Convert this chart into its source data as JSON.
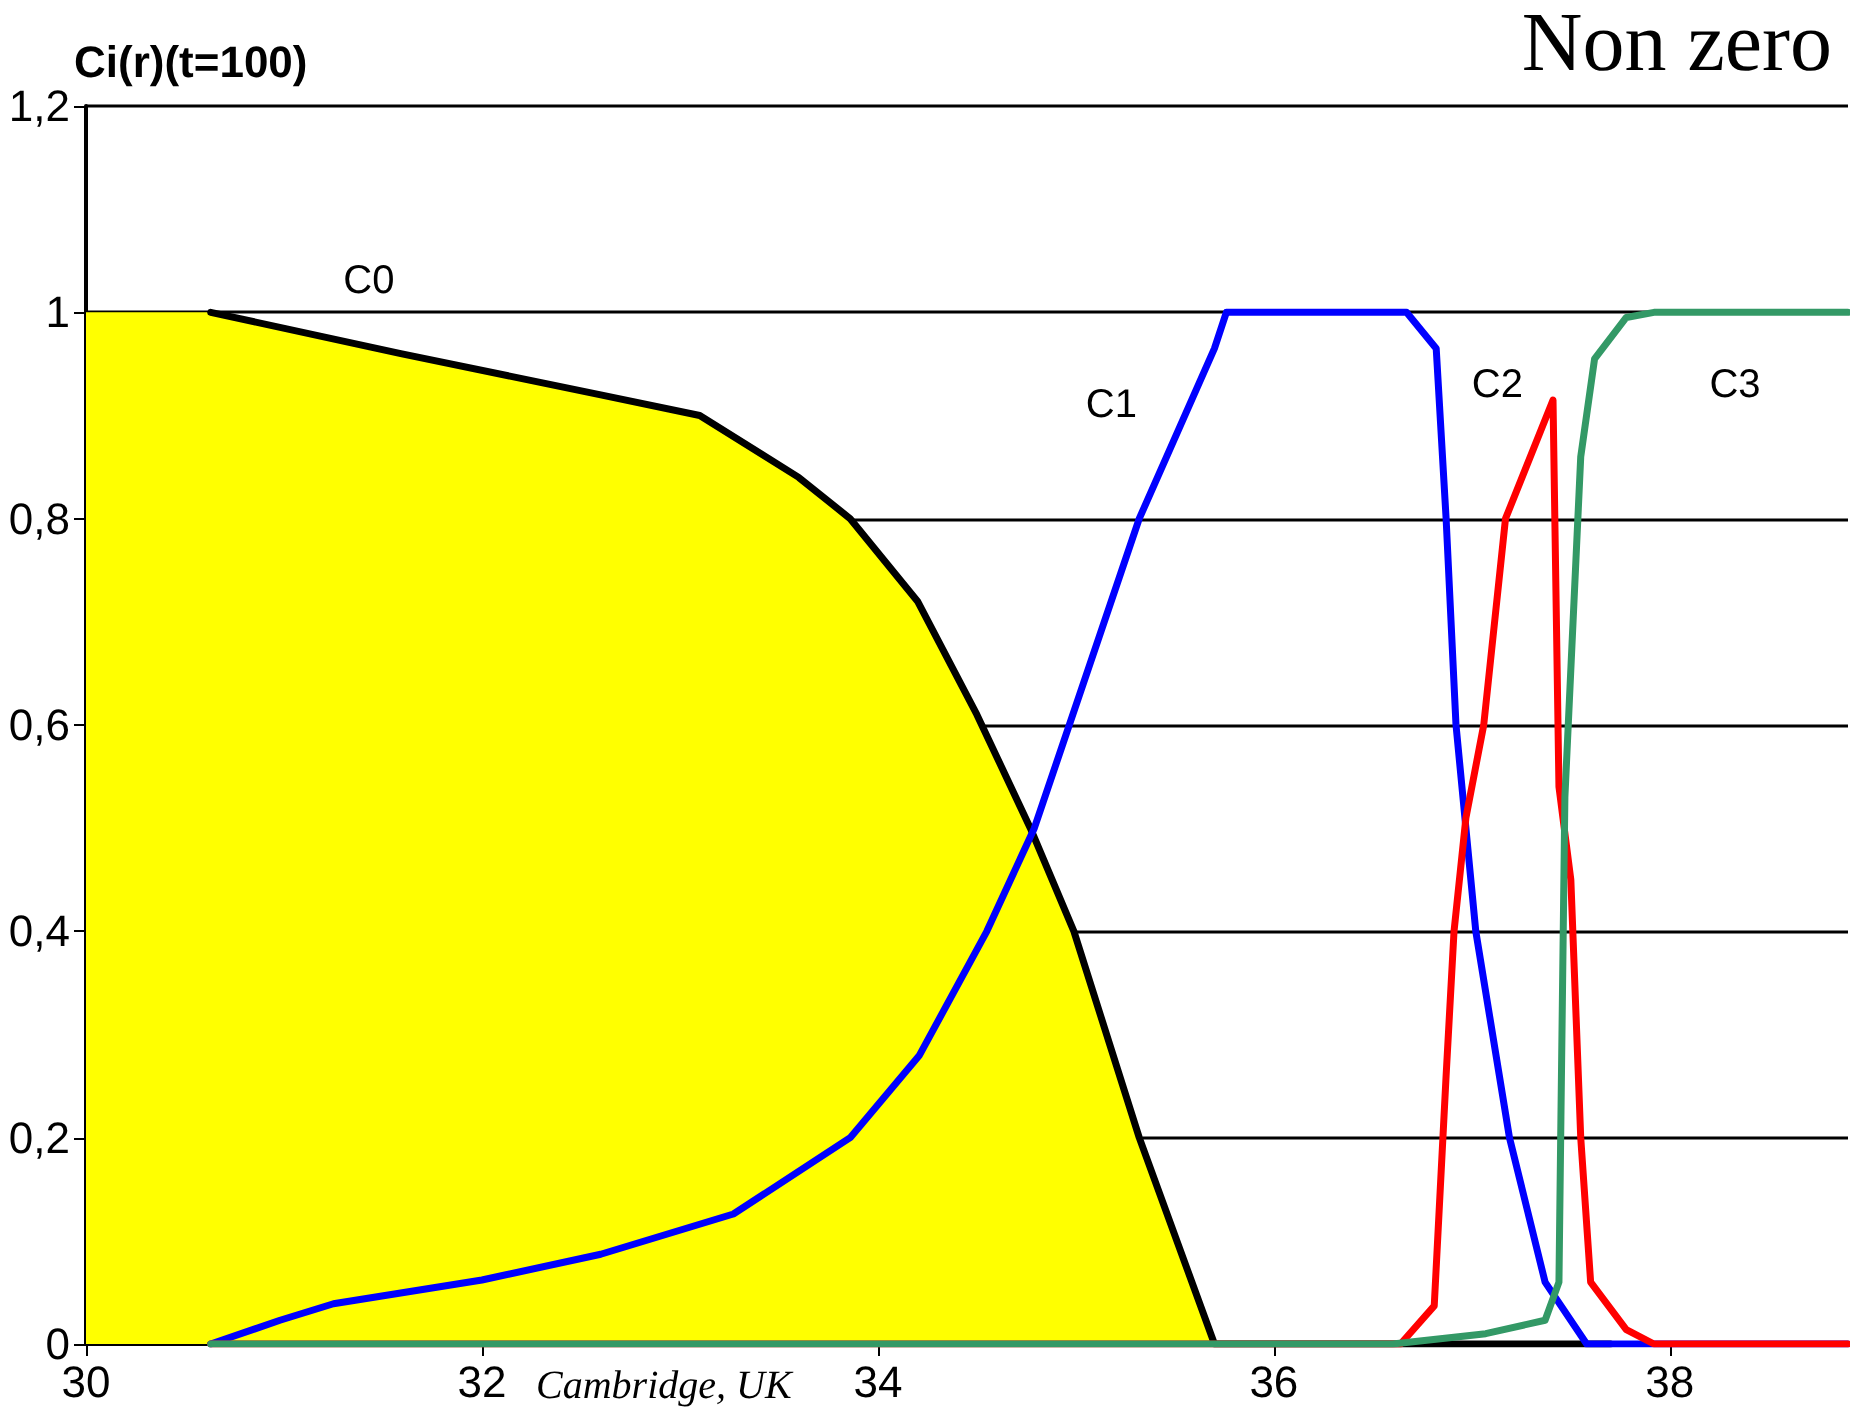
{
  "chart_data": {
    "type": "line",
    "title": "Non zero",
    "ylabel": "Ci(r)(t=100)",
    "annotations": [
      "Cambridge, UK"
    ],
    "xlim": [
      30,
      38.9
    ],
    "xticks": [
      30,
      32,
      34,
      36,
      38
    ],
    "ylim": [
      0,
      1.2
    ],
    "yticks": [
      0,
      {
        "value": 0.2,
        "label": "0,2"
      },
      {
        "value": 0.4,
        "label": "0,4"
      },
      {
        "value": 0.6,
        "label": "0,6"
      },
      {
        "value": 0.8,
        "label": "0,8"
      },
      1,
      {
        "value": 1.2,
        "label": "1,2"
      }
    ],
    "grid": "y",
    "marker": "none",
    "line_style": "solid",
    "series": [
      {
        "type": "area",
        "color": "#ffff00",
        "x": [
          30,
          30.63,
          31.59,
          32.6,
          33.1,
          33.6,
          33.86,
          34.2,
          34.5,
          34.77,
          34.99,
          35.32,
          35.7
        ],
        "values": [
          1,
          1,
          0.96,
          0.92,
          0.9,
          0.84,
          0.8,
          0.72,
          0.61,
          0.5,
          0.4,
          0.2,
          0
        ]
      },
      {
        "name": "C0",
        "color": "#000000",
        "x": [
          30.63,
          31.59,
          32.6,
          33.1,
          33.6,
          33.86,
          34.2,
          34.5,
          34.77,
          34.99,
          35.32,
          35.7,
          37.7
        ],
        "values": [
          1,
          0.96,
          0.92,
          0.9,
          0.84,
          0.8,
          0.72,
          0.61,
          0.5,
          0.4,
          0.2,
          0,
          0
        ]
      },
      {
        "name": "C1",
        "color": "#0000ff",
        "x": [
          30.63,
          30.98,
          31.25,
          32.0,
          32.6,
          33.27,
          33.86,
          34.21,
          34.55,
          34.79,
          35.32,
          35.7,
          35.76,
          36.67,
          36.82,
          36.87,
          36.92,
          37.02,
          37.19,
          37.37,
          37.58,
          38.9
        ],
        "values": [
          0,
          0.023,
          0.039,
          0.062,
          0.087,
          0.126,
          0.2,
          0.28,
          0.4,
          0.5,
          0.8,
          0.965,
          1,
          1,
          0.965,
          0.8,
          0.6,
          0.4,
          0.2,
          0.06,
          0,
          0
        ]
      },
      {
        "name": "C2",
        "color": "#ff0000",
        "x": [
          30.63,
          36.64,
          36.81,
          36.87,
          36.91,
          36.97,
          37.06,
          37.17,
          37.41,
          37.44,
          37.5,
          37.55,
          37.6,
          37.78,
          37.92,
          38.9
        ],
        "values": [
          0,
          0,
          0.037,
          0.26,
          0.4,
          0.51,
          0.6,
          0.8,
          0.915,
          0.54,
          0.45,
          0.2,
          0.06,
          0.014,
          0,
          0
        ]
      },
      {
        "name": "C3",
        "color": "#339966",
        "x": [
          30.63,
          36.6,
          37.07,
          37.37,
          37.44,
          37.45,
          37.47,
          37.55,
          37.62,
          37.78,
          37.92,
          38.9
        ],
        "values": [
          0,
          0,
          0.01,
          0.023,
          0.06,
          0.22,
          0.53,
          0.86,
          0.955,
          0.995,
          1,
          1
        ]
      }
    ]
  }
}
